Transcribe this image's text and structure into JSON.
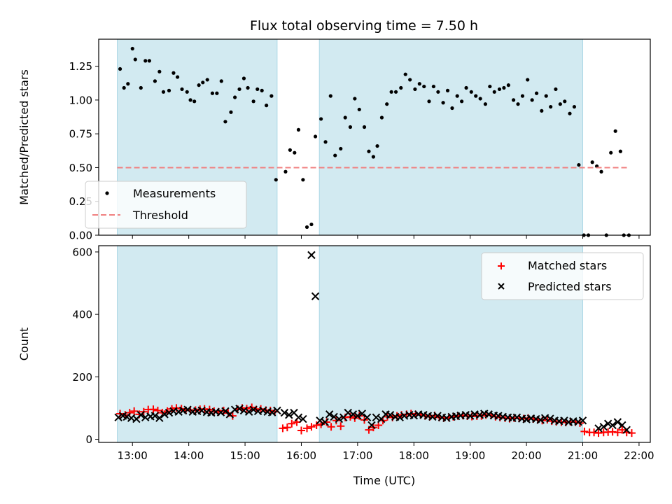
{
  "title": "Flux total observing time = 7.50 h",
  "colors": {
    "shade": "#add8e6",
    "threshold": "#f08080",
    "matched": "#ff0000",
    "predicted": "#000000",
    "measurement": "#000000"
  },
  "chart_data": [
    {
      "type": "scatter",
      "title": "Flux total observing time = 7.50 h",
      "xlabel": "",
      "ylabel": "Matched/Predicted stars",
      "xlim": [
        12.4,
        22.2
      ],
      "ylim": [
        0,
        1.45
      ],
      "xticks": [
        13,
        14,
        15,
        16,
        17,
        18,
        19,
        20,
        21,
        22
      ],
      "yticks": [
        0.0,
        0.25,
        0.5,
        0.75,
        1.0,
        1.25
      ],
      "ytick_labels": [
        "0.00",
        "0.25",
        "0.50",
        "0.75",
        "1.00",
        "1.25"
      ],
      "shaded_intervals": [
        [
          12.73,
          15.57
        ],
        [
          16.32,
          21.0
        ]
      ],
      "legend_position": "lower-left",
      "series": [
        {
          "name": "Measurements",
          "marker": "dot",
          "x": [
            12.78,
            12.85,
            12.92,
            13.0,
            13.05,
            13.15,
            13.23,
            13.3,
            13.4,
            13.48,
            13.55,
            13.65,
            13.73,
            13.8,
            13.88,
            13.97,
            14.03,
            14.1,
            14.18,
            14.25,
            14.33,
            14.42,
            14.5,
            14.58,
            14.65,
            14.75,
            14.82,
            14.9,
            14.98,
            15.05,
            15.15,
            15.22,
            15.3,
            15.38,
            15.47,
            15.55,
            15.72,
            15.8,
            15.88,
            15.95,
            16.03,
            16.1,
            16.18,
            16.25,
            16.35,
            16.43,
            16.52,
            16.6,
            16.7,
            16.78,
            16.87,
            16.95,
            17.03,
            17.12,
            17.2,
            17.28,
            17.35,
            17.43,
            17.52,
            17.6,
            17.68,
            17.77,
            17.85,
            17.93,
            18.02,
            18.1,
            18.18,
            18.27,
            18.35,
            18.43,
            18.52,
            18.6,
            18.68,
            18.77,
            18.85,
            18.93,
            19.02,
            19.1,
            19.18,
            19.27,
            19.35,
            19.43,
            19.52,
            19.6,
            19.68,
            19.77,
            19.85,
            19.93,
            20.02,
            20.1,
            20.18,
            20.27,
            20.35,
            20.43,
            20.52,
            20.6,
            20.68,
            20.77,
            20.85,
            20.93,
            21.02,
            21.1,
            21.17,
            21.25,
            21.33,
            21.42,
            21.5,
            21.58,
            21.67,
            21.73,
            21.82
          ],
          "y": [
            1.23,
            1.09,
            1.12,
            1.38,
            1.3,
            1.09,
            1.29,
            1.29,
            1.14,
            1.21,
            1.06,
            1.07,
            1.2,
            1.17,
            1.08,
            1.06,
            1.0,
            0.99,
            1.11,
            1.13,
            1.15,
            1.05,
            1.05,
            1.14,
            0.84,
            0.91,
            1.02,
            1.08,
            1.16,
            1.09,
            0.99,
            1.08,
            1.07,
            0.96,
            1.03,
            0.41,
            0.47,
            0.63,
            0.61,
            0.78,
            0.41,
            0.06,
            0.08,
            0.73,
            0.86,
            0.69,
            1.03,
            0.59,
            0.64,
            0.87,
            0.8,
            1.01,
            0.93,
            0.8,
            0.62,
            0.58,
            0.66,
            0.87,
            0.97,
            1.06,
            1.06,
            1.09,
            1.19,
            1.15,
            1.08,
            1.12,
            1.1,
            0.99,
            1.1,
            1.06,
            0.98,
            1.07,
            0.94,
            1.03,
            0.99,
            1.09,
            1.06,
            1.03,
            1.01,
            0.97,
            1.1,
            1.06,
            1.08,
            1.09,
            1.11,
            1.0,
            0.97,
            1.03,
            1.15,
            1.0,
            1.05,
            0.92,
            1.03,
            0.95,
            1.08,
            0.97,
            0.99,
            0.9,
            0.95,
            0.52,
            0.0,
            0.0,
            0.54,
            0.51,
            0.47,
            0.0,
            0.61,
            0.77,
            0.62,
            0.0,
            0.0
          ]
        },
        {
          "name": "Threshold",
          "style": "dashed",
          "x": [
            12.73,
            21.83
          ],
          "y": [
            0.5,
            0.5
          ]
        }
      ]
    },
    {
      "type": "scatter",
      "xlabel": "Time (UTC)",
      "ylabel": "Count",
      "xlim": [
        12.4,
        22.2
      ],
      "ylim": [
        -10,
        620
      ],
      "xticks": [
        13,
        14,
        15,
        16,
        17,
        18,
        19,
        20,
        21,
        22
      ],
      "xtick_labels": [
        "13:00",
        "14:00",
        "15:00",
        "16:00",
        "17:00",
        "18:00",
        "19:00",
        "20:00",
        "21:00",
        "22:00"
      ],
      "yticks": [
        0,
        200,
        400,
        600
      ],
      "ytick_labels": [
        "0",
        "200",
        "400",
        "600"
      ],
      "shaded_intervals": [
        [
          12.73,
          15.57
        ],
        [
          16.32,
          21.0
        ]
      ],
      "legend_position": "upper-right",
      "series": [
        {
          "name": "Matched stars",
          "marker": "plus",
          "x": [
            12.78,
            12.87,
            12.95,
            13.03,
            13.12,
            13.2,
            13.28,
            13.37,
            13.45,
            13.53,
            13.62,
            13.7,
            13.78,
            13.87,
            13.95,
            14.03,
            14.12,
            14.2,
            14.28,
            14.37,
            14.45,
            14.53,
            14.62,
            14.7,
            14.78,
            14.87,
            14.95,
            15.03,
            15.12,
            15.2,
            15.28,
            15.37,
            15.45,
            15.53,
            15.67,
            15.75,
            15.83,
            15.92,
            16.0,
            16.1,
            16.18,
            16.27,
            16.35,
            16.45,
            16.53,
            16.62,
            16.7,
            16.78,
            16.87,
            16.95,
            17.03,
            17.12,
            17.2,
            17.28,
            17.37,
            17.45,
            17.53,
            17.62,
            17.7,
            17.78,
            17.87,
            17.95,
            18.03,
            18.12,
            18.2,
            18.28,
            18.37,
            18.45,
            18.53,
            18.62,
            18.7,
            18.78,
            18.87,
            18.95,
            19.03,
            19.12,
            19.2,
            19.28,
            19.37,
            19.45,
            19.53,
            19.62,
            19.7,
            19.78,
            19.87,
            19.95,
            20.03,
            20.12,
            20.2,
            20.28,
            20.37,
            20.45,
            20.53,
            20.62,
            20.7,
            20.78,
            20.87,
            20.95,
            21.03,
            21.12,
            21.2,
            21.28,
            21.37,
            21.45,
            21.53,
            21.62,
            21.7,
            21.78,
            21.87
          ],
          "y": [
            82,
            78,
            85,
            90,
            80,
            88,
            95,
            96,
            92,
            85,
            90,
            97,
            100,
            98,
            92,
            94,
            93,
            96,
            97,
            95,
            90,
            88,
            92,
            84,
            75,
            96,
            100,
            98,
            102,
            95,
            97,
            93,
            92,
            88,
            35,
            38,
            50,
            55,
            28,
            35,
            40,
            45,
            48,
            55,
            40,
            60,
            42,
            70,
            72,
            68,
            75,
            62,
            30,
            38,
            45,
            60,
            72,
            70,
            75,
            78,
            80,
            82,
            80,
            78,
            75,
            72,
            76,
            70,
            68,
            70,
            72,
            75,
            76,
            74,
            73,
            74,
            75,
            78,
            77,
            72,
            70,
            68,
            66,
            68,
            67,
            66,
            68,
            65,
            62,
            60,
            63,
            58,
            56,
            55,
            54,
            56,
            55,
            52,
            25,
            22,
            22,
            20,
            22,
            23,
            24,
            22,
            30,
            22,
            20
          ]
        },
        {
          "name": "Predicted stars",
          "marker": "x",
          "x": [
            12.75,
            12.83,
            12.9,
            12.98,
            13.07,
            13.15,
            13.23,
            13.32,
            13.4,
            13.48,
            13.57,
            13.65,
            13.73,
            13.82,
            13.9,
            13.98,
            14.07,
            14.15,
            14.23,
            14.32,
            14.4,
            14.48,
            14.57,
            14.65,
            14.73,
            14.82,
            14.9,
            14.98,
            15.07,
            15.15,
            15.23,
            15.32,
            15.4,
            15.48,
            15.57,
            15.7,
            15.78,
            15.87,
            15.95,
            16.03,
            16.18,
            16.25,
            16.33,
            16.42,
            16.5,
            16.58,
            16.67,
            16.75,
            16.83,
            16.92,
            17.0,
            17.08,
            17.17,
            17.25,
            17.33,
            17.42,
            17.5,
            17.58,
            17.67,
            17.75,
            17.83,
            17.92,
            18.0,
            18.08,
            18.17,
            18.25,
            18.33,
            18.42,
            18.5,
            18.58,
            18.67,
            18.75,
            18.83,
            18.92,
            19.0,
            19.08,
            19.17,
            19.25,
            19.33,
            19.42,
            19.5,
            19.58,
            19.67,
            19.75,
            19.83,
            19.92,
            20.0,
            20.08,
            20.17,
            20.25,
            20.33,
            20.42,
            20.5,
            20.58,
            20.67,
            20.75,
            20.83,
            20.92,
            21.0,
            21.28,
            21.37,
            21.45,
            21.53,
            21.62,
            21.7,
            21.78
          ],
          "y": [
            70,
            75,
            72,
            68,
            65,
            78,
            70,
            73,
            75,
            68,
            80,
            85,
            90,
            88,
            92,
            95,
            88,
            90,
            92,
            87,
            85,
            88,
            86,
            90,
            80,
            95,
            98,
            92,
            88,
            95,
            90,
            92,
            88,
            86,
            92,
            85,
            78,
            85,
            70,
            65,
            590,
            458,
            60,
            55,
            80,
            72,
            65,
            70,
            85,
            80,
            75,
            82,
            70,
            45,
            70,
            65,
            80,
            78,
            72,
            70,
            75,
            78,
            76,
            80,
            78,
            75,
            72,
            75,
            70,
            68,
            72,
            74,
            76,
            78,
            75,
            80,
            78,
            82,
            80,
            76,
            75,
            72,
            70,
            68,
            70,
            66,
            64,
            67,
            65,
            62,
            68,
            66,
            60,
            58,
            60,
            55,
            58,
            56,
            60,
            35,
            40,
            50,
            45,
            55,
            45,
            30
          ]
        }
      ]
    }
  ]
}
